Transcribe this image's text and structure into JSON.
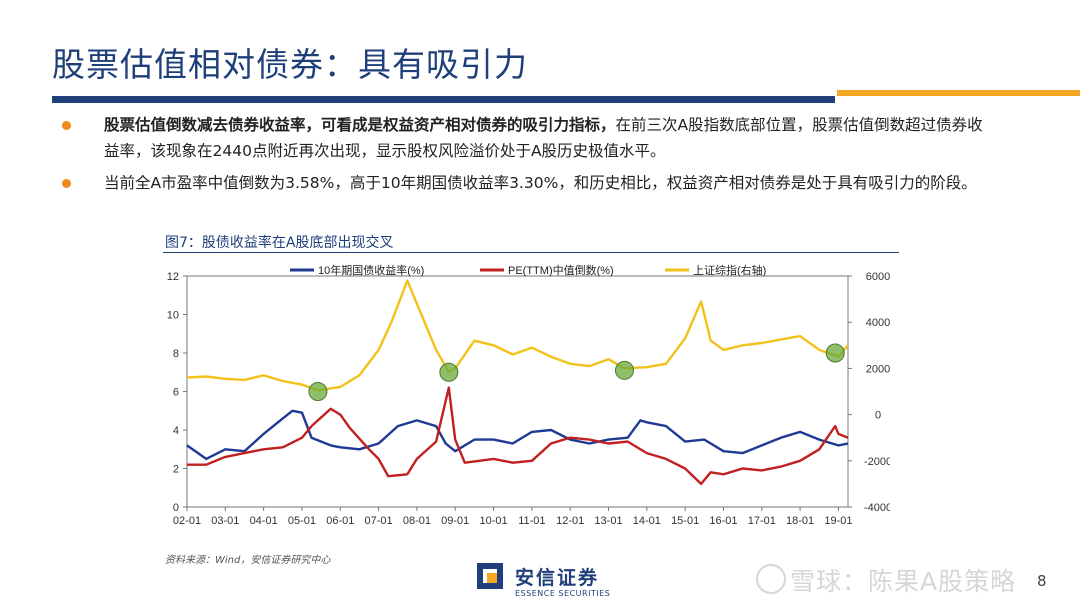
{
  "header": {
    "title": "股票估值相对债券：具有吸引力",
    "accent_blue": "#1f3f7a",
    "accent_orange": "#f5a623"
  },
  "bullets": [
    {
      "bold": "股票估值倒数减去债券收益率，可看成是权益资产相对债券的吸引力指标，",
      "text": "在前三次A股指数底部位置，股票估值倒数超过债券收益率，该现象在2440点附近再次出现，显示股权风险溢价处于A股历史极值水平。"
    },
    {
      "bold": "",
      "text": "当前全A市盈率中值倒数为3.58%，高于10年期国债收益率3.30%，和历史相比，权益资产相对债券是处于具有吸引力的阶段。"
    }
  ],
  "figure": {
    "title": "图7：股债收益率在A股底部出现交叉",
    "source": "资料来源：Wind，安信证券研究中心"
  },
  "chart_data": {
    "type": "line",
    "x_ticks": [
      "02-01",
      "03-01",
      "04-01",
      "05-01",
      "06-01",
      "07-01",
      "08-01",
      "09-01",
      "10-01",
      "11-01",
      "12-01",
      "13-01",
      "14-01",
      "15-01",
      "16-01",
      "17-01",
      "18-01",
      "19-01"
    ],
    "y_left_ticks": [
      "0",
      "2",
      "4",
      "6",
      "8",
      "10",
      "12"
    ],
    "y_right_ticks": [
      "-4000",
      "-2000",
      "0",
      "2000",
      "4000",
      "6000"
    ],
    "ylim_left": [
      0,
      12
    ],
    "ylim_right": [
      -4000,
      6000
    ],
    "legend_position": "top",
    "series": [
      {
        "name": "10年期国债收益率(%)",
        "axis": "left",
        "color": "#1f3a93",
        "points": [
          [
            "02-01",
            3.2
          ],
          [
            "02-07",
            2.5
          ],
          [
            "03-01",
            3.0
          ],
          [
            "03-07",
            2.9
          ],
          [
            "04-01",
            3.8
          ],
          [
            "04-07",
            4.6
          ],
          [
            "04-10",
            5.0
          ],
          [
            "05-01",
            4.9
          ],
          [
            "05-04",
            3.6
          ],
          [
            "05-10",
            3.2
          ],
          [
            "06-01",
            3.1
          ],
          [
            "06-07",
            3.0
          ],
          [
            "07-01",
            3.3
          ],
          [
            "07-07",
            4.2
          ],
          [
            "08-01",
            4.5
          ],
          [
            "08-07",
            4.2
          ],
          [
            "08-10",
            3.3
          ],
          [
            "09-01",
            2.9
          ],
          [
            "09-07",
            3.5
          ],
          [
            "10-01",
            3.5
          ],
          [
            "10-07",
            3.3
          ],
          [
            "11-01",
            3.9
          ],
          [
            "11-07",
            4.0
          ],
          [
            "12-01",
            3.5
          ],
          [
            "12-07",
            3.3
          ],
          [
            "13-01",
            3.5
          ],
          [
            "13-07",
            3.6
          ],
          [
            "13-11",
            4.5
          ],
          [
            "14-01",
            4.4
          ],
          [
            "14-07",
            4.2
          ],
          [
            "15-01",
            3.4
          ],
          [
            "15-07",
            3.5
          ],
          [
            "16-01",
            2.9
          ],
          [
            "16-07",
            2.8
          ],
          [
            "17-01",
            3.2
          ],
          [
            "17-07",
            3.6
          ],
          [
            "18-01",
            3.9
          ],
          [
            "18-07",
            3.5
          ],
          [
            "19-01",
            3.2
          ],
          [
            "19-04",
            3.3
          ]
        ]
      },
      {
        "name": "PE(TTM)中值倒数(%)",
        "axis": "left",
        "color": "#c0201f",
        "points": [
          [
            "02-01",
            2.2
          ],
          [
            "02-07",
            2.2
          ],
          [
            "03-01",
            2.6
          ],
          [
            "03-07",
            2.8
          ],
          [
            "04-01",
            3.0
          ],
          [
            "04-07",
            3.1
          ],
          [
            "05-01",
            3.6
          ],
          [
            "05-04",
            4.2
          ],
          [
            "05-10",
            5.1
          ],
          [
            "06-01",
            4.8
          ],
          [
            "06-04",
            4.1
          ],
          [
            "06-10",
            3.0
          ],
          [
            "07-01",
            2.5
          ],
          [
            "07-04",
            1.6
          ],
          [
            "07-10",
            1.7
          ],
          [
            "08-01",
            2.5
          ],
          [
            "08-07",
            3.4
          ],
          [
            "08-11",
            6.2
          ],
          [
            "09-01",
            3.5
          ],
          [
            "09-04",
            2.3
          ],
          [
            "10-01",
            2.5
          ],
          [
            "10-07",
            2.3
          ],
          [
            "11-01",
            2.4
          ],
          [
            "11-07",
            3.3
          ],
          [
            "12-01",
            3.6
          ],
          [
            "12-07",
            3.5
          ],
          [
            "13-01",
            3.3
          ],
          [
            "13-07",
            3.4
          ],
          [
            "14-01",
            2.8
          ],
          [
            "14-07",
            2.5
          ],
          [
            "15-01",
            2.0
          ],
          [
            "15-06",
            1.2
          ],
          [
            "15-09",
            1.8
          ],
          [
            "16-01",
            1.7
          ],
          [
            "16-07",
            2.0
          ],
          [
            "17-01",
            1.9
          ],
          [
            "17-07",
            2.1
          ],
          [
            "18-01",
            2.4
          ],
          [
            "18-07",
            3.0
          ],
          [
            "18-12",
            4.2
          ],
          [
            "19-01",
            3.8
          ],
          [
            "19-04",
            3.6
          ]
        ]
      },
      {
        "name": "上证综指(右轴)",
        "axis": "right",
        "color": "#f2c21b",
        "points": [
          [
            "02-01",
            1600
          ],
          [
            "02-07",
            1650
          ],
          [
            "03-01",
            1550
          ],
          [
            "03-07",
            1500
          ],
          [
            "04-01",
            1700
          ],
          [
            "04-07",
            1450
          ],
          [
            "05-01",
            1300
          ],
          [
            "05-06",
            1050
          ],
          [
            "06-01",
            1200
          ],
          [
            "06-07",
            1700
          ],
          [
            "07-01",
            2800
          ],
          [
            "07-05",
            4000
          ],
          [
            "07-10",
            5800
          ],
          [
            "08-01",
            4800
          ],
          [
            "08-07",
            2800
          ],
          [
            "08-11",
            1850
          ],
          [
            "09-01",
            2000
          ],
          [
            "09-07",
            3200
          ],
          [
            "10-01",
            3000
          ],
          [
            "10-07",
            2600
          ],
          [
            "11-01",
            2900
          ],
          [
            "11-07",
            2500
          ],
          [
            "12-01",
            2200
          ],
          [
            "12-07",
            2100
          ],
          [
            "13-01",
            2400
          ],
          [
            "13-06",
            2000
          ],
          [
            "14-01",
            2050
          ],
          [
            "14-07",
            2200
          ],
          [
            "15-01",
            3300
          ],
          [
            "15-06",
            4900
          ],
          [
            "15-09",
            3200
          ],
          [
            "16-01",
            2800
          ],
          [
            "16-07",
            3000
          ],
          [
            "17-01",
            3100
          ],
          [
            "17-07",
            3250
          ],
          [
            "18-01",
            3400
          ],
          [
            "18-07",
            2800
          ],
          [
            "19-01",
            2500
          ],
          [
            "19-04",
            3000
          ]
        ]
      }
    ],
    "highlights": [
      [
        "05-06",
        6.0
      ],
      [
        "08-11",
        7.0
      ],
      [
        "13-06",
        7.1
      ],
      [
        "18-12",
        8.0
      ]
    ],
    "highlight_color": "#6aaa3a"
  },
  "footer": {
    "logo_text": "安信证券",
    "logo_sub": "ESSENCE SECURITIES",
    "page_number": "8",
    "watermark": "雪球：陈果A股策略"
  }
}
